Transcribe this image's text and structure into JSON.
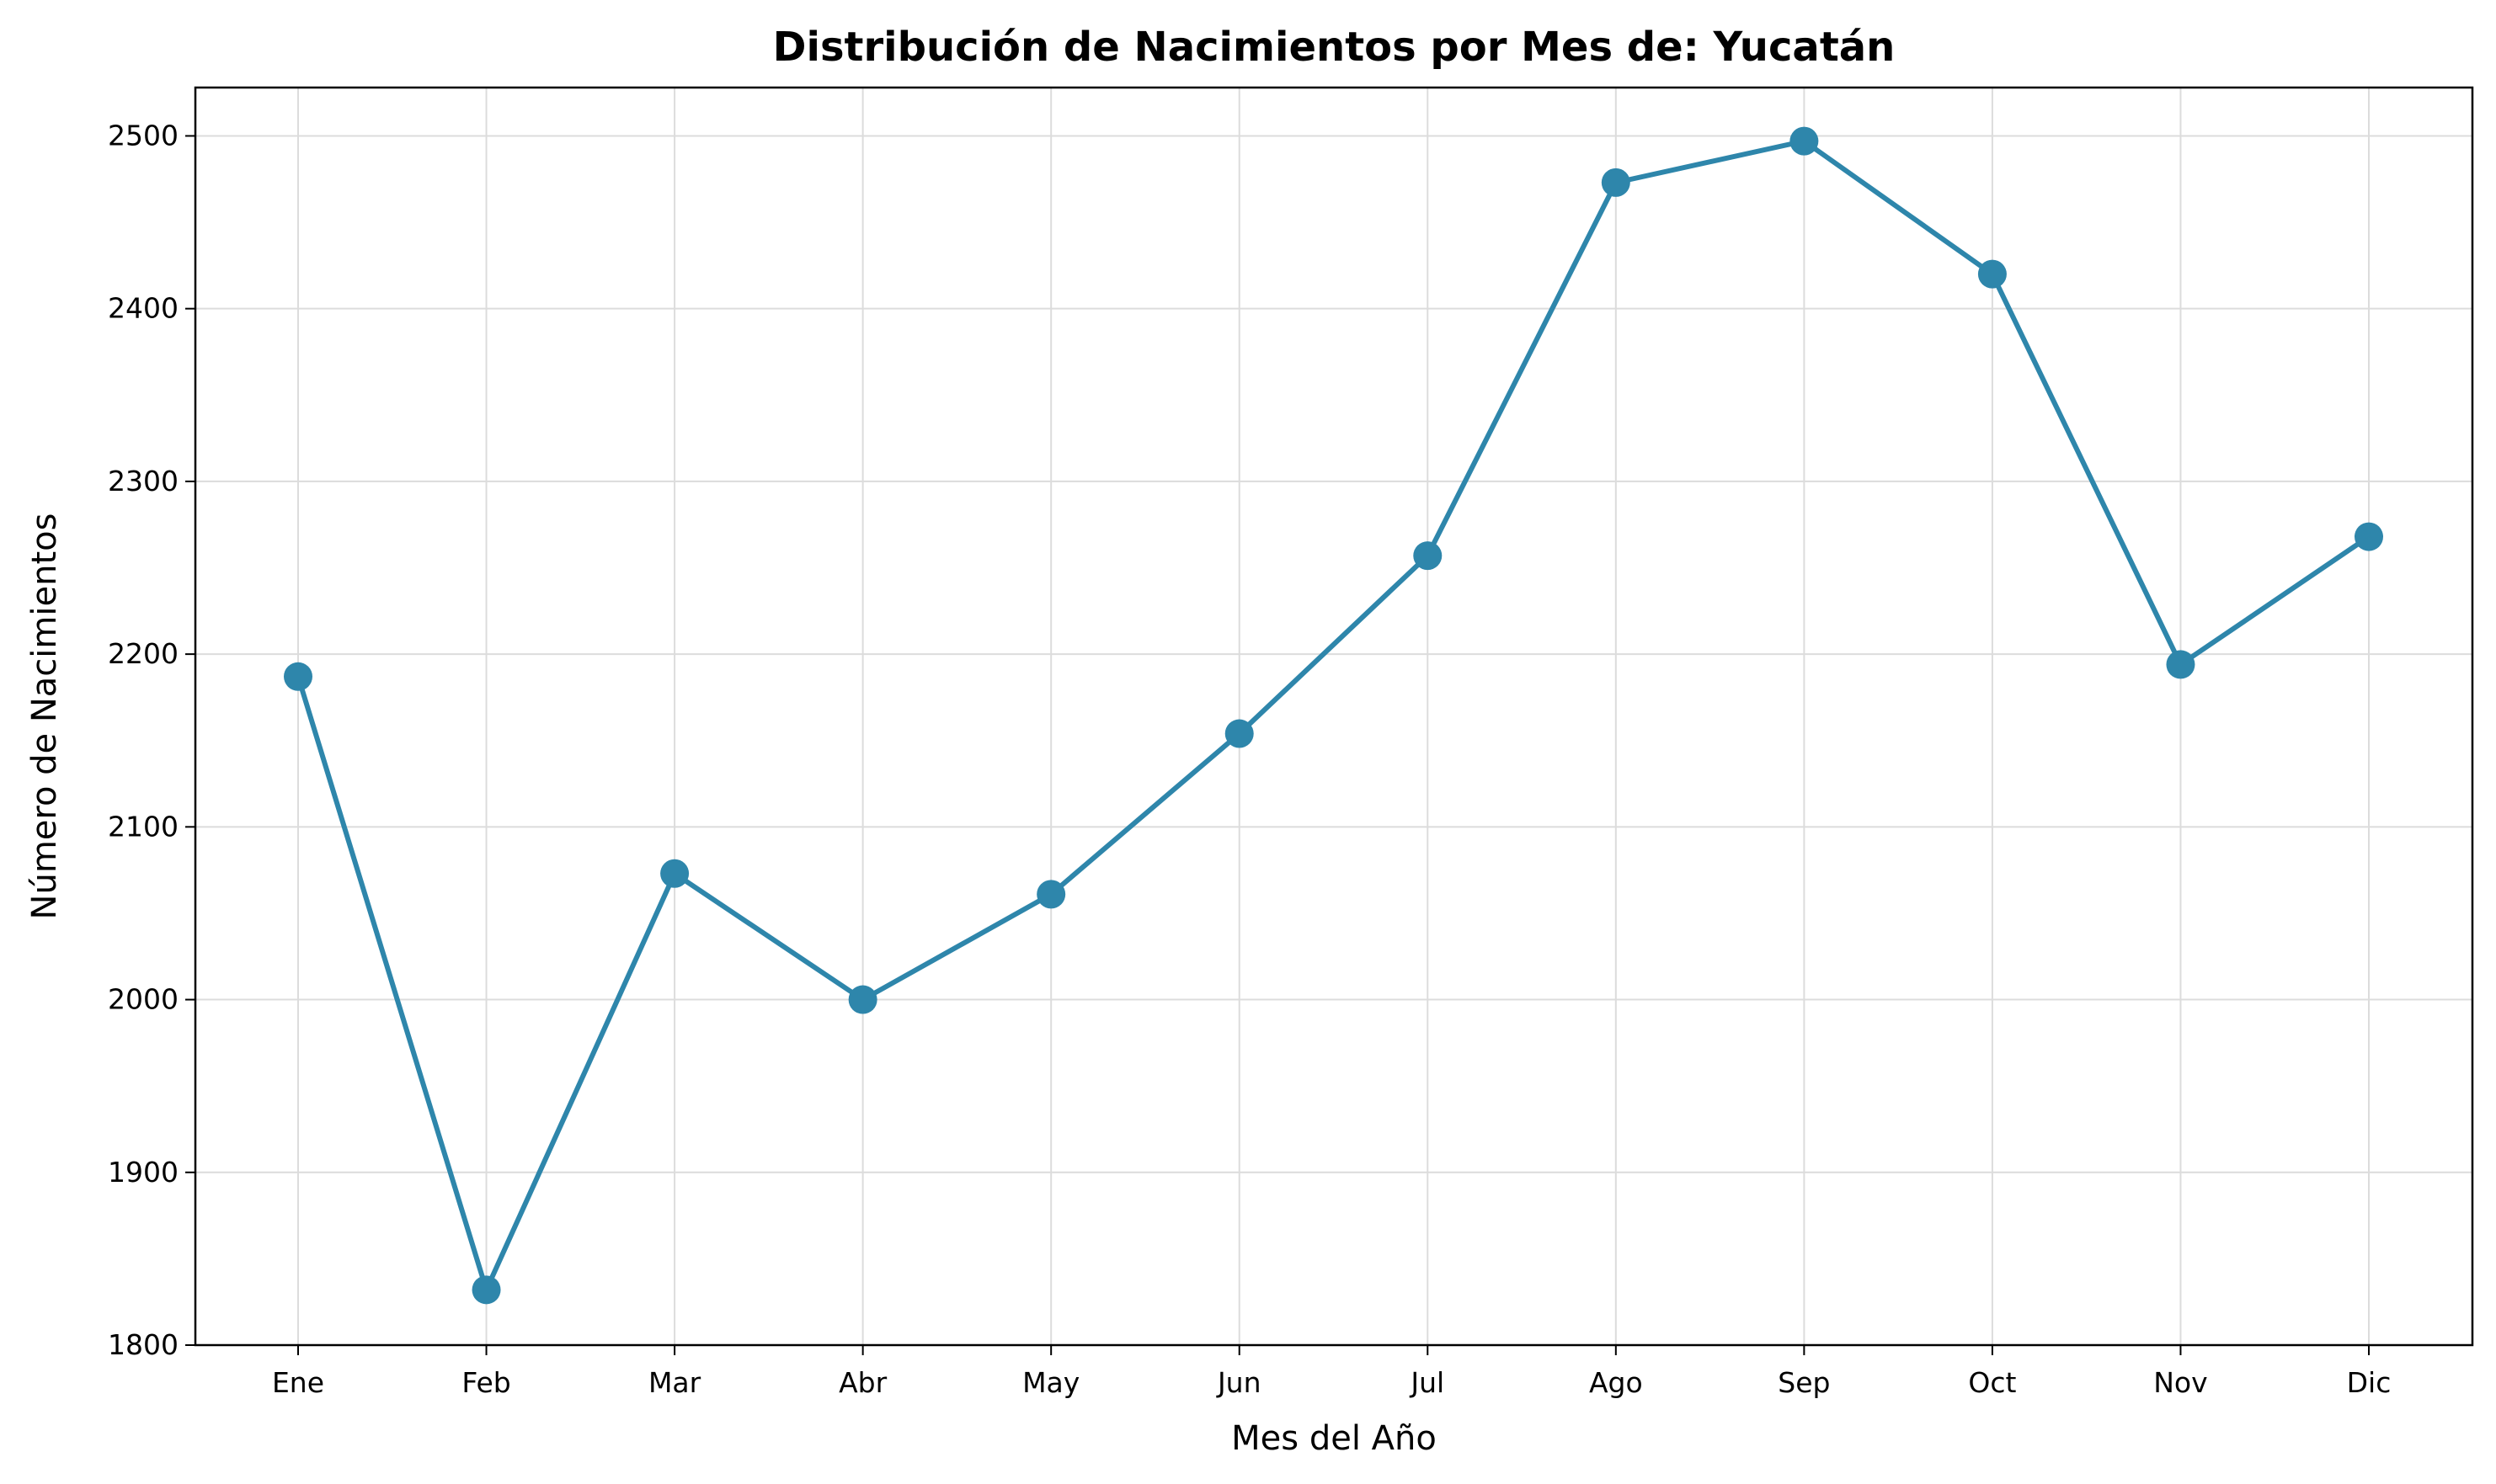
{
  "chart_data": {
    "type": "line",
    "title": "Distribución de Nacimientos por Mes de: Yucatán",
    "xlabel": "Mes del Año",
    "ylabel": "Número de Nacimientos",
    "categories": [
      "Ene",
      "Feb",
      "Mar",
      "Abr",
      "May",
      "Jun",
      "Jul",
      "Ago",
      "Sep",
      "Oct",
      "Nov",
      "Dic"
    ],
    "series": [
      {
        "values": [
          2187,
          1832,
          2073,
          2000,
          2061,
          2154,
          2257,
          2473,
          2497,
          2420,
          2194,
          2268
        ],
        "color": "#2e86ab"
      }
    ],
    "yticks": [
      1800,
      1900,
      2000,
      2100,
      2200,
      2300,
      2400,
      2500
    ],
    "ylim": [
      1800,
      2528
    ],
    "grid": true
  }
}
